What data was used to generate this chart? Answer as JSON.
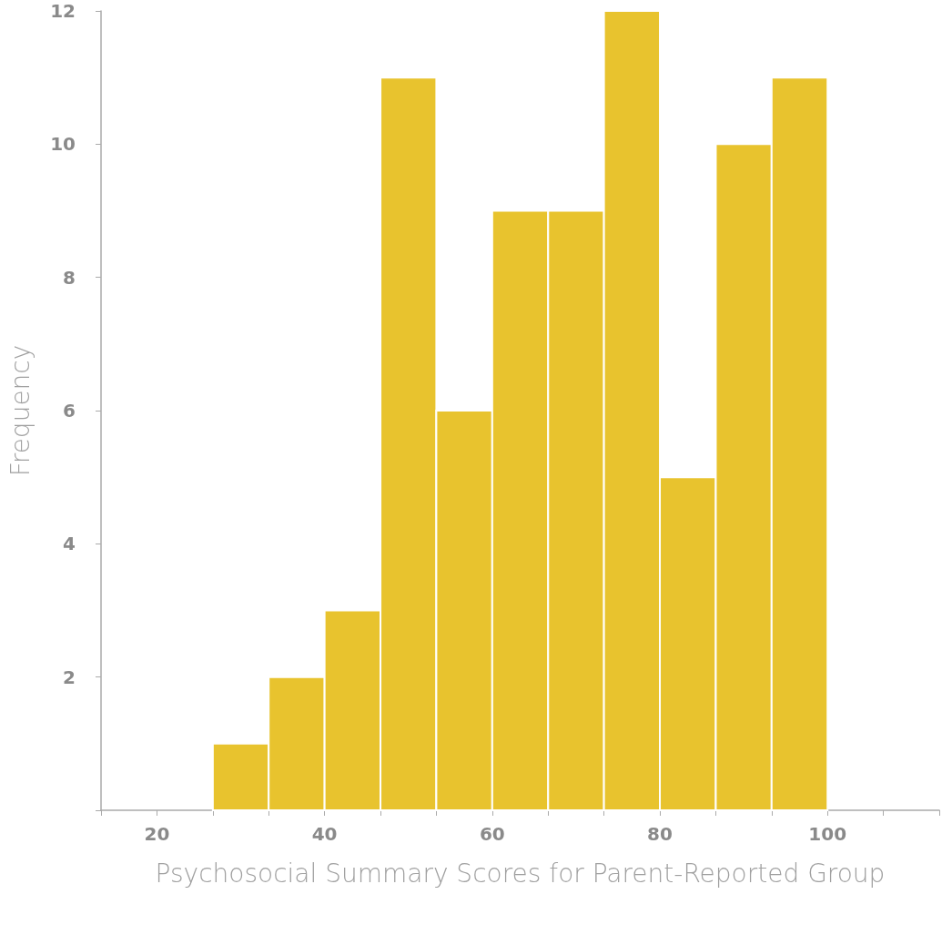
{
  "chart_data": {
    "type": "histogram",
    "xlabel": "Psychosocial Summary Scores for Parent-Reported Group",
    "ylabel": "Frequency",
    "bins": [
      26.67,
      33.33,
      40,
      46.67,
      53.33,
      60,
      66.67,
      73.33,
      80,
      86.67,
      93.33,
      100
    ],
    "values": [
      1,
      2,
      3,
      11,
      6,
      9,
      9,
      12,
      5,
      10,
      11
    ],
    "color": "#e8c32e",
    "xlim": [
      13.33,
      113.33
    ],
    "xticks": [
      {
        "value": 13.33,
        "label": null
      },
      20,
      {
        "value": 26.67,
        "label": null
      },
      {
        "value": 33.33,
        "label": null
      },
      40,
      {
        "value": 46.67,
        "label": null
      },
      {
        "value": 53.33,
        "label": null
      },
      60,
      {
        "value": 66.67,
        "label": null
      },
      {
        "value": 73.33,
        "label": null
      },
      80,
      {
        "value": 86.67,
        "label": null
      },
      {
        "value": 93.33,
        "label": null
      },
      100,
      {
        "value": 106.67,
        "label": null
      },
      {
        "value": 113.33,
        "label": null
      }
    ],
    "ylim": [
      0,
      12
    ],
    "yticks": [
      {
        "value": 0,
        "label": null
      },
      2,
      4,
      6,
      8,
      10,
      12
    ],
    "grid": false
  }
}
